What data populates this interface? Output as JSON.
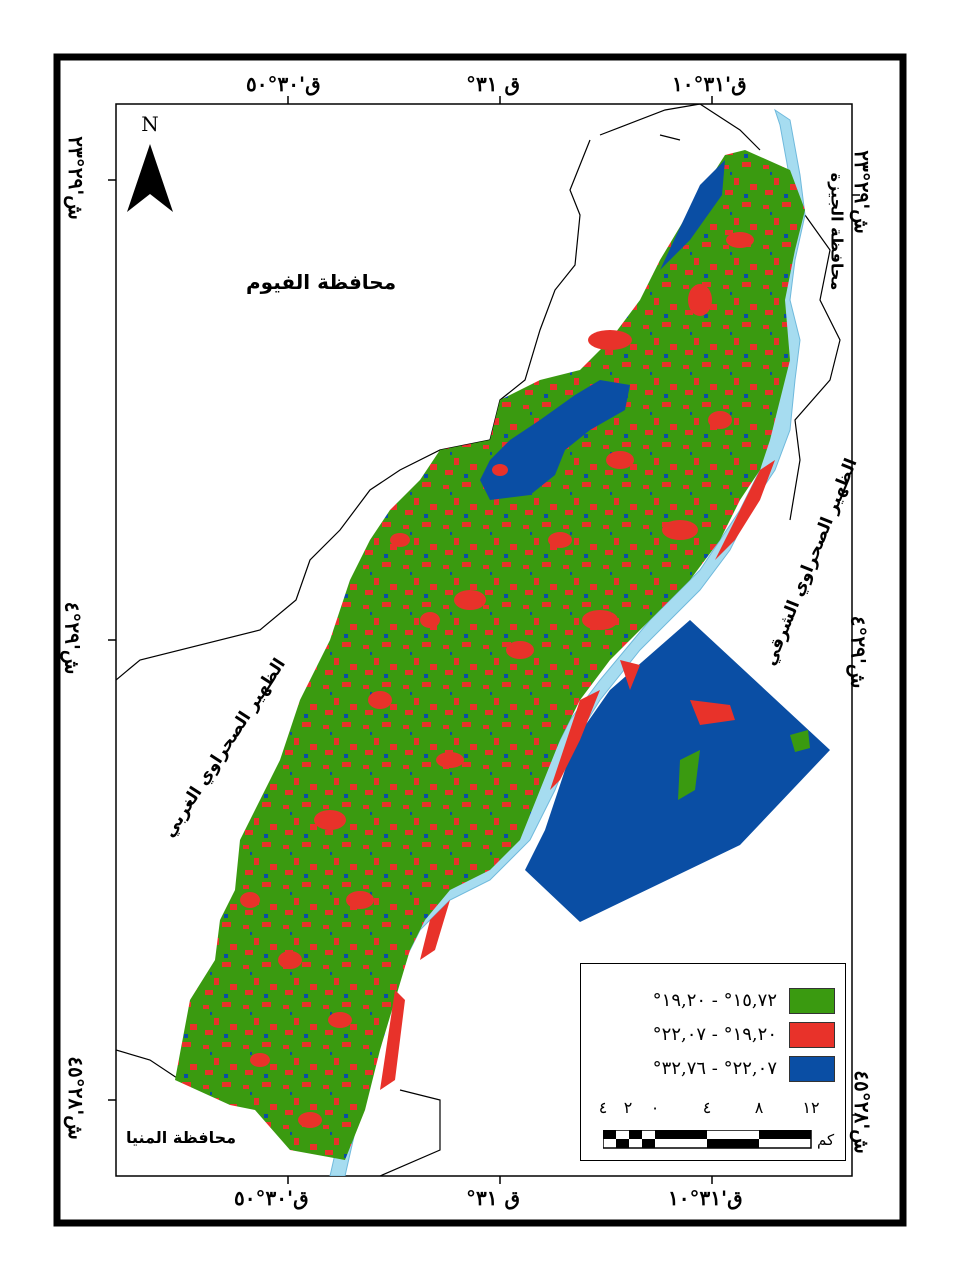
{
  "coordinates": {
    "top": [
      "ق'٣٠°٥٠",
      "ق ٣١°",
      "ق'٣١°١٠"
    ],
    "bottom": [
      "ق'٣٠°٥٠",
      "ق ٣١°",
      "ق'٣١°١٠"
    ],
    "left": [
      "ش'٢٩°٢٣",
      "ش'٢٩°٤",
      "ش'٢٨°٤٥"
    ],
    "right": [
      "ش'٢٩°٢٣",
      "ش'٢٩°٤",
      "ش'٢٨°٤٥"
    ]
  },
  "regions": {
    "fayoum": "محافظة الفيوم",
    "giza": "محافظة الجيزة",
    "minya": "محافظة المنيا",
    "east_desert": "الظهير الصحراوي الشرقي",
    "west_desert": "الظهير الصحراوي الغربي"
  },
  "north_label": "N",
  "legend": [
    {
      "label": "١٥,٧٢° - ١٩,٢٠°",
      "color": "#3a9a10"
    },
    {
      "label": "١٩,٢٠° - ٢٢,٠٧°",
      "color": "#e8322a"
    },
    {
      "label": "٢٢,٠٧° - ٣٢,٧٦°",
      "color": "#0a4ea4"
    }
  ],
  "scale_bar": {
    "ticks": [
      "٤",
      "٢",
      "٠",
      "٤",
      "٨",
      "١٢"
    ],
    "unit": "كم"
  },
  "colors": {
    "river": "#a6dcf0",
    "frame": "#000000"
  }
}
